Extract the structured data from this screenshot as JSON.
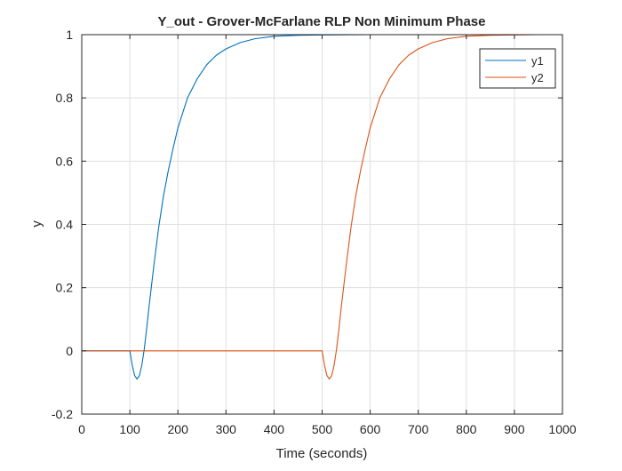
{
  "chart_data": {
    "type": "line",
    "title": "Y_out - Grover-McFarlane RLP Non Minimum Phase",
    "xlabel": "Time (seconds)",
    "ylabel": "y",
    "xlim": [
      0,
      1000
    ],
    "ylim": [
      -0.2,
      1
    ],
    "xticks": [
      0,
      100,
      200,
      300,
      400,
      500,
      600,
      700,
      800,
      900,
      1000
    ],
    "yticks": [
      -0.2,
      0,
      0.2,
      0.4,
      0.6,
      0.8,
      1
    ],
    "xtick_labels": [
      "0",
      "100",
      "200",
      "300",
      "400",
      "500",
      "600",
      "700",
      "800",
      "900",
      "1000"
    ],
    "ytick_labels": [
      "-0.2",
      "0",
      "0.2",
      "0.4",
      "0.6",
      "0.8",
      "1"
    ],
    "grid": true,
    "legend_position": "top-right",
    "series": [
      {
        "name": "y1",
        "color": "#0072BD",
        "x": [
          0,
          100,
          105,
          110,
          115,
          120,
          125,
          130,
          135,
          140,
          150,
          160,
          170,
          180,
          190,
          200,
          220,
          240,
          260,
          280,
          300,
          330,
          360,
          400,
          450,
          500,
          600,
          700,
          800,
          900,
          1000
        ],
        "y": [
          0,
          0,
          -0.045,
          -0.078,
          -0.089,
          -0.078,
          -0.045,
          0.005,
          0.07,
          0.14,
          0.27,
          0.39,
          0.49,
          0.57,
          0.64,
          0.705,
          0.8,
          0.86,
          0.905,
          0.935,
          0.955,
          0.975,
          0.987,
          0.995,
          0.998,
          0.999,
          1,
          1,
          1,
          1,
          1
        ]
      },
      {
        "name": "y2",
        "color": "#D95319",
        "x": [
          0,
          500,
          505,
          510,
          515,
          520,
          525,
          530,
          535,
          540,
          550,
          560,
          570,
          580,
          590,
          600,
          620,
          640,
          660,
          680,
          700,
          730,
          760,
          800,
          850,
          900,
          950,
          1000
        ],
        "y": [
          0,
          0,
          -0.045,
          -0.078,
          -0.089,
          -0.078,
          -0.045,
          0.005,
          0.07,
          0.14,
          0.27,
          0.39,
          0.49,
          0.57,
          0.64,
          0.705,
          0.8,
          0.86,
          0.905,
          0.935,
          0.955,
          0.975,
          0.987,
          0.995,
          0.998,
          0.999,
          1,
          1
        ]
      }
    ]
  }
}
